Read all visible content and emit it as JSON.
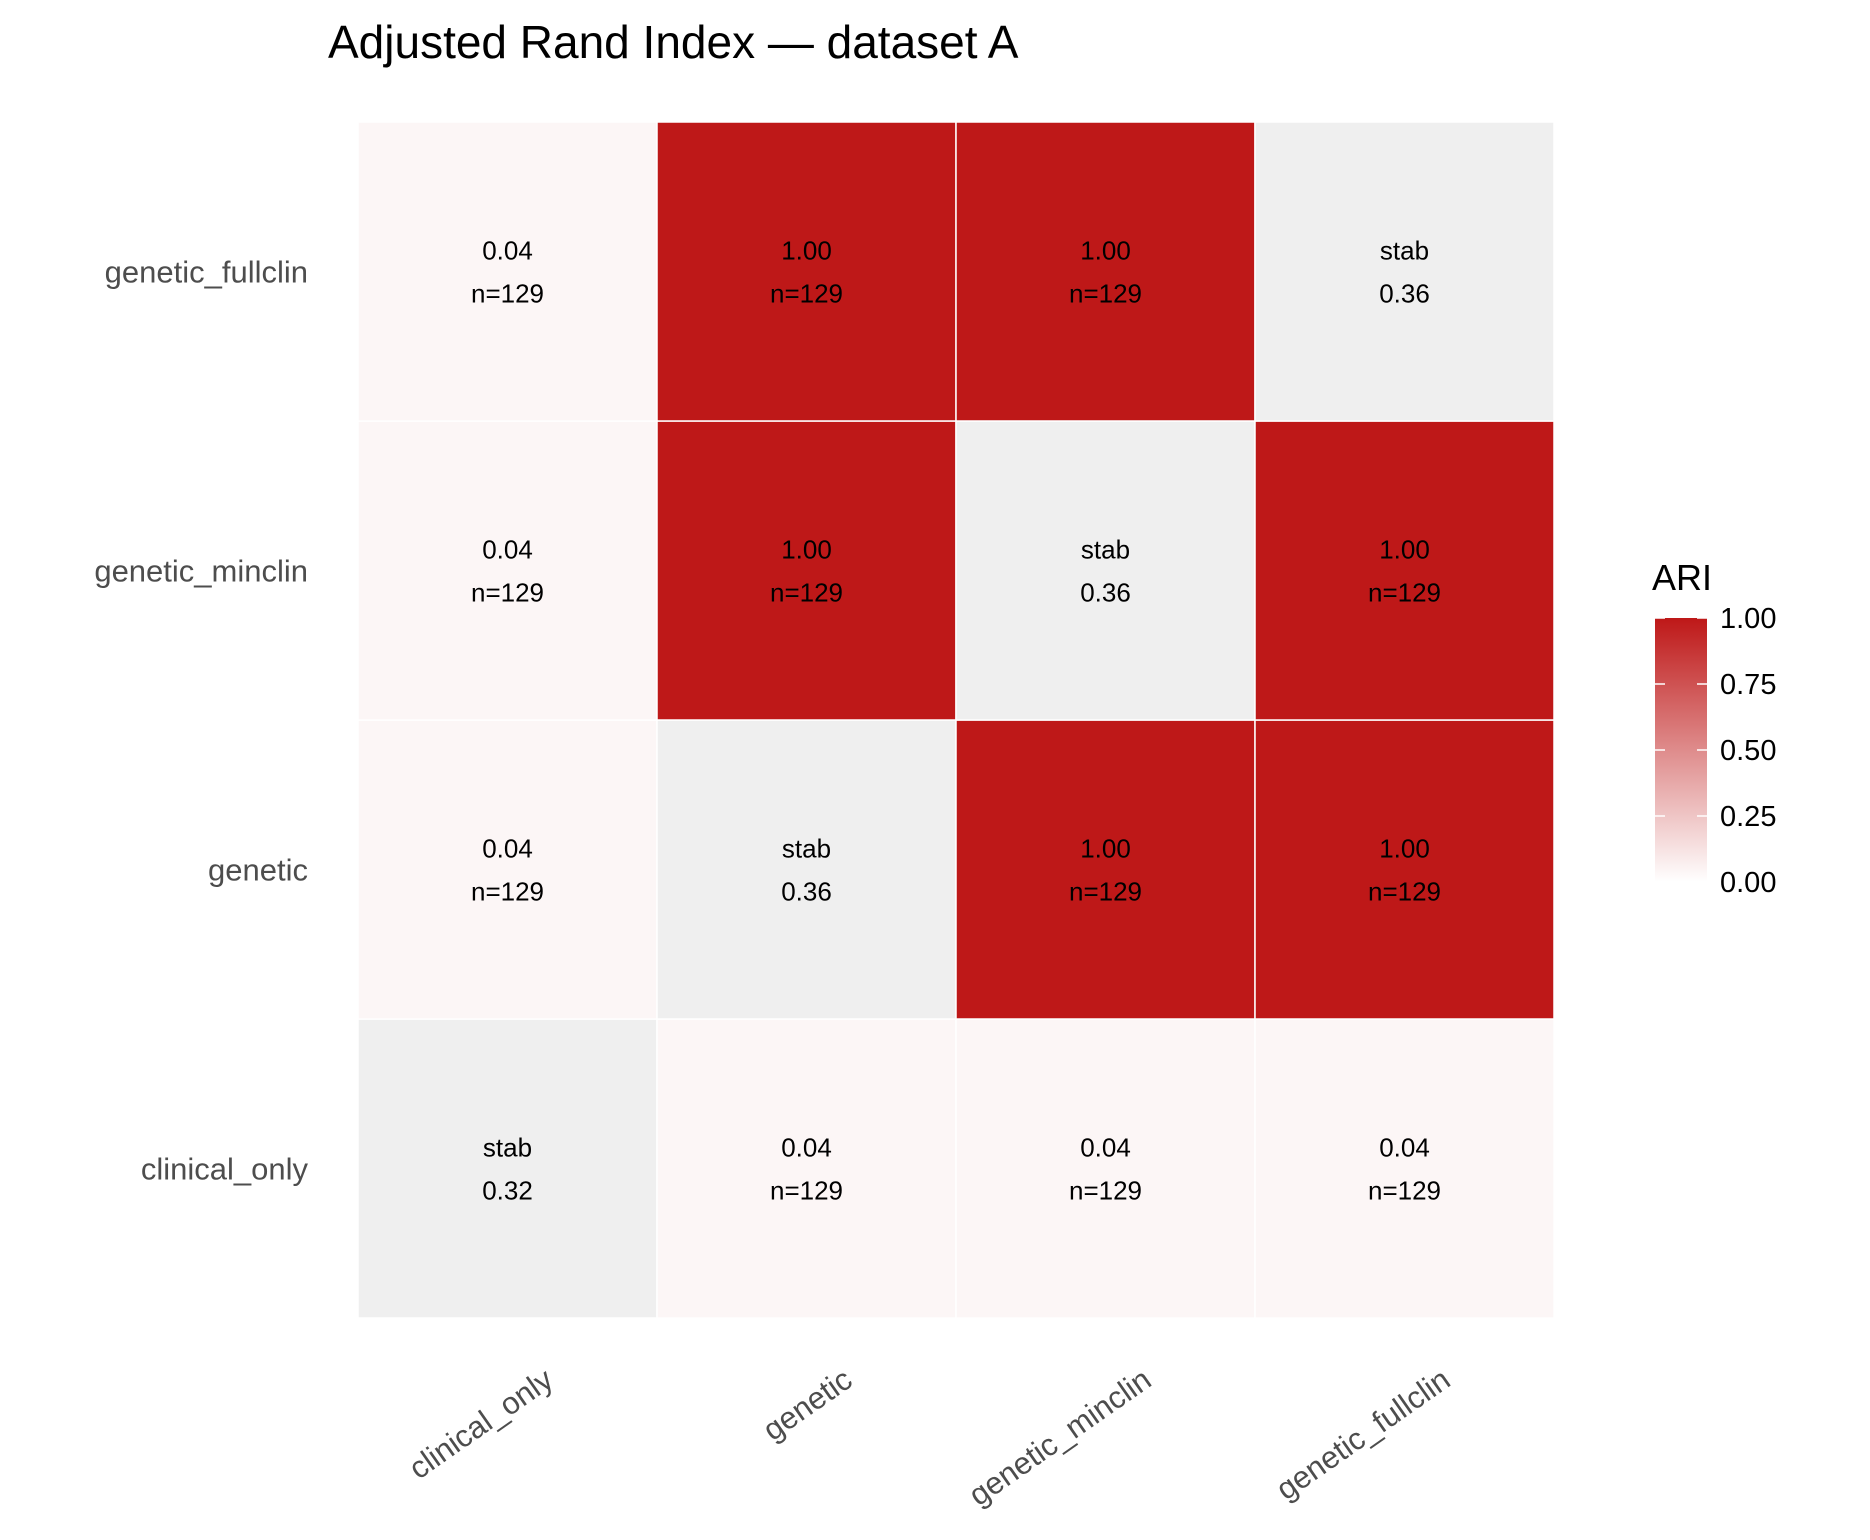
{
  "chart_data": {
    "type": "heatmap",
    "title": "Adjusted Rand Index — dataset A",
    "x_categories": [
      "clinical_only",
      "genetic",
      "genetic_minclin",
      "genetic_fullclin"
    ],
    "y_categories": [
      "clinical_only",
      "genetic",
      "genetic_minclin",
      "genetic_fullclin"
    ],
    "cells": [
      {
        "x": "clinical_only",
        "y": "clinical_only",
        "type": "stab",
        "value": 0.32,
        "line1": "stab",
        "line2": "0.32"
      },
      {
        "x": "genetic",
        "y": "clinical_only",
        "type": "ari",
        "value": 0.04,
        "line1": "0.04",
        "line2": "n=129"
      },
      {
        "x": "genetic_minclin",
        "y": "clinical_only",
        "type": "ari",
        "value": 0.04,
        "line1": "0.04",
        "line2": "n=129"
      },
      {
        "x": "genetic_fullclin",
        "y": "clinical_only",
        "type": "ari",
        "value": 0.04,
        "line1": "0.04",
        "line2": "n=129"
      },
      {
        "x": "clinical_only",
        "y": "genetic",
        "type": "ari",
        "value": 0.04,
        "line1": "0.04",
        "line2": "n=129"
      },
      {
        "x": "genetic",
        "y": "genetic",
        "type": "stab",
        "value": 0.36,
        "line1": "stab",
        "line2": "0.36"
      },
      {
        "x": "genetic_minclin",
        "y": "genetic",
        "type": "ari",
        "value": 1.0,
        "line1": "1.00",
        "line2": "n=129"
      },
      {
        "x": "genetic_fullclin",
        "y": "genetic",
        "type": "ari",
        "value": 1.0,
        "line1": "1.00",
        "line2": "n=129"
      },
      {
        "x": "clinical_only",
        "y": "genetic_minclin",
        "type": "ari",
        "value": 0.04,
        "line1": "0.04",
        "line2": "n=129"
      },
      {
        "x": "genetic",
        "y": "genetic_minclin",
        "type": "ari",
        "value": 1.0,
        "line1": "1.00",
        "line2": "n=129"
      },
      {
        "x": "genetic_minclin",
        "y": "genetic_minclin",
        "type": "stab",
        "value": 0.36,
        "line1": "stab",
        "line2": "0.36"
      },
      {
        "x": "genetic_fullclin",
        "y": "genetic_minclin",
        "type": "ari",
        "value": 1.0,
        "line1": "1.00",
        "line2": "n=129"
      },
      {
        "x": "clinical_only",
        "y": "genetic_fullclin",
        "type": "ari",
        "value": 0.04,
        "line1": "0.04",
        "line2": "n=129"
      },
      {
        "x": "genetic",
        "y": "genetic_fullclin",
        "type": "ari",
        "value": 1.0,
        "line1": "1.00",
        "line2": "n=129"
      },
      {
        "x": "genetic_minclin",
        "y": "genetic_fullclin",
        "type": "ari",
        "value": 1.0,
        "line1": "1.00",
        "line2": "n=129"
      },
      {
        "x": "genetic_fullclin",
        "y": "genetic_fullclin",
        "type": "stab",
        "value": 0.36,
        "line1": "stab",
        "line2": "0.36"
      }
    ],
    "legend": {
      "title": "ARI",
      "ticks": [
        "0.00",
        "0.25",
        "0.50",
        "0.75",
        "1.00"
      ],
      "range": [
        0,
        1
      ],
      "position": "right"
    },
    "colors": {
      "low": "#ffffff",
      "high": "#be1818",
      "diagonal": "#efefef",
      "grid": "#ffffff"
    },
    "grid": false
  }
}
